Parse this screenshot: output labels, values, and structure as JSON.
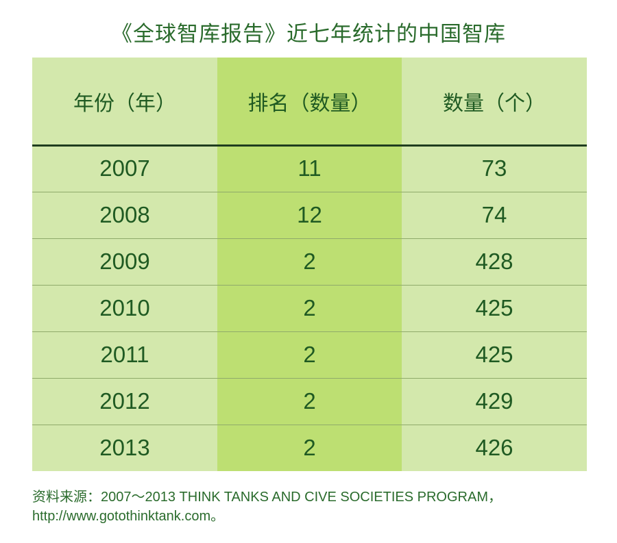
{
  "title": "《全球智库报告》近七年统计的中国智库",
  "chart_data": {
    "type": "table",
    "columns": [
      "年份（年）",
      "排名（数量）",
      "数量（个）"
    ],
    "rows": [
      [
        "2007",
        "11",
        "73"
      ],
      [
        "2008",
        "12",
        "74"
      ],
      [
        "2009",
        "2",
        "428"
      ],
      [
        "2010",
        "2",
        "425"
      ],
      [
        "2011",
        "2",
        "425"
      ],
      [
        "2012",
        "2",
        "429"
      ],
      [
        "2013",
        "2",
        "426"
      ]
    ]
  },
  "source": {
    "line1": "资料来源：2007～2013 THINK TANKS AND CIVE SOCIETIES PROGRAM，",
    "line2": "http://www.gotothinktank.com。"
  },
  "colors": {
    "side_column": "#d3e8ac",
    "middle_column": "#bddf72",
    "text": "#1f5a22",
    "header_rule": "#1f3d1e"
  }
}
